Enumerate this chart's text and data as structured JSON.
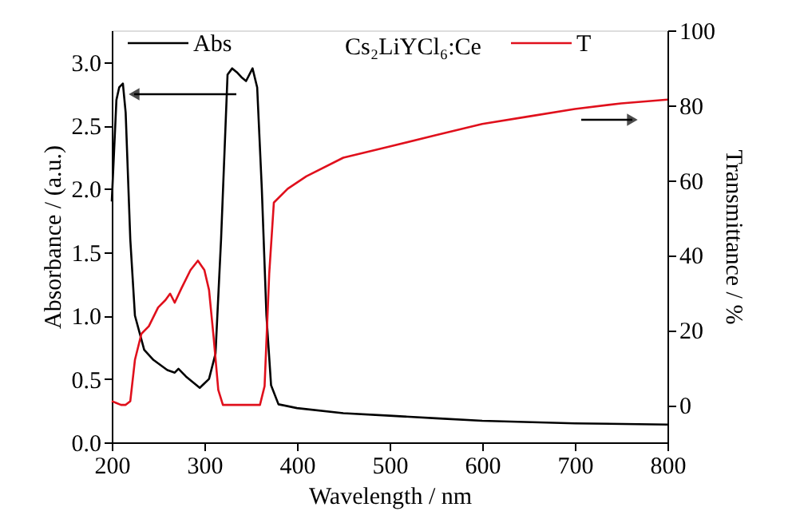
{
  "chart_data": {
    "type": "line",
    "xlabel": "Wavelength / nm",
    "ylabel": "Absorbance / (a.u.)",
    "y2label": "Transmittance / %",
    "annotations": [
      "Cs₂LiYCl₆:Ce"
    ],
    "xlim": [
      200,
      800
    ],
    "xticks": [
      200,
      300,
      400,
      500,
      600,
      700,
      800
    ],
    "ylim": [
      0,
      3.25
    ],
    "yticks": [
      {
        "value": 0,
        "label": "0.0"
      },
      0.5,
      {
        "value": 1,
        "label": "1.0"
      },
      1.5,
      {
        "value": 2,
        "label": "2.0"
      },
      2.5,
      {
        "value": 3,
        "label": "3.0"
      }
    ],
    "y2lim": [
      -10,
      100
    ],
    "y2ticks": [
      0,
      20,
      40,
      60,
      80,
      100
    ],
    "grid": false,
    "legend": "top",
    "marker": "none",
    "line_style": "solid",
    "series": [
      {
        "name": "Abs",
        "color": "#000000",
        "x": [
          200,
          205,
          208,
          212,
          215,
          220,
          225,
          235,
          245,
          260,
          268,
          272,
          280,
          295,
          305,
          312,
          318,
          325,
          330,
          335,
          340,
          345,
          352,
          357,
          362,
          367,
          372,
          380,
          400,
          450,
          500,
          550,
          600,
          700,
          800
        ],
        "values": [
          1.9,
          2.7,
          2.8,
          2.83,
          2.6,
          1.6,
          1.0,
          0.73,
          0.65,
          0.57,
          0.55,
          0.58,
          0.52,
          0.43,
          0.5,
          0.7,
          1.6,
          2.9,
          2.95,
          2.92,
          2.88,
          2.85,
          2.95,
          2.8,
          2.0,
          1.0,
          0.45,
          0.3,
          0.27,
          0.23,
          0.21,
          0.19,
          0.17,
          0.15,
          0.14
        ]
      },
      {
        "name": "T",
        "color": "#e0101c",
        "axis": "y2",
        "x": [
          200,
          205,
          210,
          215,
          220,
          225,
          232,
          240,
          250,
          258,
          263,
          268,
          275,
          285,
          293,
          300,
          305,
          310,
          315,
          320,
          330,
          350,
          360,
          365,
          370,
          375,
          390,
          410,
          450,
          500,
          550,
          600,
          650,
          700,
          750,
          800
        ],
        "values": [
          1,
          0.5,
          0,
          0,
          1,
          12,
          19,
          21,
          26,
          28,
          29.7,
          27.3,
          31,
          36,
          38.5,
          36,
          30.7,
          18,
          4,
          0,
          0,
          0,
          0,
          5,
          35,
          54,
          57.7,
          61,
          66,
          69,
          72,
          75,
          77,
          79,
          80.5,
          81.5
        ]
      }
    ]
  }
}
